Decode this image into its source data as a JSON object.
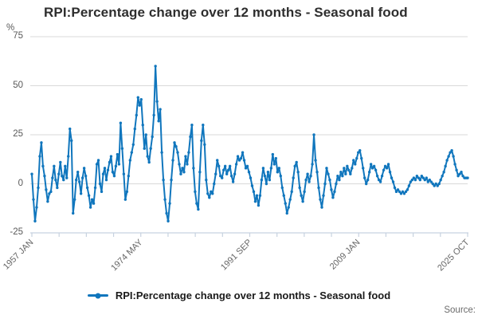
{
  "title": "RPI:Percentage change over 12 months - Seasonal food",
  "source_label": "Source:",
  "legend": {
    "label": "RPI:Percentage change over 12 months - Seasonal food"
  },
  "colors": {
    "line": "#1076bd",
    "grid": "#d9d9d9",
    "axis": "#c7d2e0",
    "title_text": "#2e2e2e",
    "tick_text": "#595959",
    "source_text": "#6b6b6b"
  },
  "chart_data": {
    "type": "line",
    "title": "RPI:Percentage change over 12 months - Seasonal food",
    "unit": "%",
    "xlabel": "",
    "ylabel": "%",
    "ylim": [
      -25,
      75
    ],
    "y_ticks": [
      75,
      50,
      25,
      0,
      -25
    ],
    "x_tick_labels": [
      "1957 JAN",
      "1974 MAY",
      "1991 SEP",
      "2009 JAN",
      "2025 OCT"
    ],
    "x_start": "1957 JAN",
    "x_end": "2025 OCT",
    "sampling": "quarterly (JAN, APR, JUL, OCT of each year)",
    "grid": "horizontal",
    "legend_position": "bottom",
    "series": [
      {
        "name": "RPI:Percentage change over 12 months - Seasonal food",
        "color": "#1076bd",
        "values": [
          5,
          -8,
          -19,
          -12,
          -2,
          14,
          21,
          9,
          4,
          -3,
          -9,
          -5,
          -4,
          3,
          9,
          2,
          -2,
          5,
          11,
          4,
          2,
          9,
          3,
          14,
          28,
          22,
          -15,
          -8,
          2,
          6,
          1,
          -5,
          3,
          8,
          4,
          -2,
          -6,
          -12,
          -8,
          -10,
          -2,
          10,
          12,
          0,
          -4,
          5,
          8,
          2,
          7,
          11,
          14,
          6,
          4,
          9,
          15,
          10,
          31,
          18,
          5,
          -8,
          -4,
          4,
          12,
          16,
          20,
          28,
          35,
          44,
          40,
          43,
          30,
          18,
          25,
          14,
          11,
          18,
          24,
          35,
          60,
          42,
          32,
          38,
          16,
          2,
          -8,
          -15,
          -19,
          -10,
          2,
          12,
          21,
          19,
          16,
          10,
          5,
          8,
          6,
          14,
          10,
          16,
          24,
          30,
          8,
          -4,
          -10,
          -13,
          6,
          22,
          30,
          20,
          2,
          -5,
          -7,
          -4,
          -5,
          0,
          5,
          12,
          9,
          4,
          3,
          7,
          9,
          5,
          7,
          9,
          4,
          1,
          5,
          10,
          14,
          12,
          13,
          16,
          12,
          8,
          9,
          6,
          3,
          -1,
          -4,
          -9,
          -6,
          -11,
          -6,
          2,
          8,
          4,
          0,
          6,
          2,
          8,
          15,
          10,
          13,
          6,
          8,
          4,
          -2,
          -6,
          -10,
          -15,
          -12,
          -8,
          -4,
          3,
          9,
          11,
          6,
          -2,
          -6,
          -9,
          -4,
          2,
          5,
          1,
          4,
          10,
          25,
          12,
          6,
          -2,
          -8,
          -12,
          -6,
          0,
          8,
          5,
          2,
          -3,
          -7,
          -4,
          0,
          4,
          2,
          6,
          4,
          8,
          5,
          9,
          7,
          5,
          8,
          12,
          10,
          13,
          16,
          17,
          13,
          8,
          3,
          0,
          2,
          6,
          10,
          8,
          9,
          7,
          4,
          2,
          1,
          4,
          7,
          9,
          8,
          10,
          6,
          3,
          1,
          -2,
          -4,
          -3,
          -4,
          -5,
          -4,
          -5,
          -4,
          -3,
          -1,
          1,
          2,
          3,
          2,
          4,
          3,
          2,
          4,
          3,
          2,
          3,
          1,
          2,
          1,
          0,
          -1,
          0,
          -1,
          0,
          2,
          4,
          6,
          9,
          12,
          14,
          16,
          17,
          14,
          10,
          7,
          4,
          5,
          6,
          4,
          3,
          3,
          3
        ]
      }
    ]
  }
}
